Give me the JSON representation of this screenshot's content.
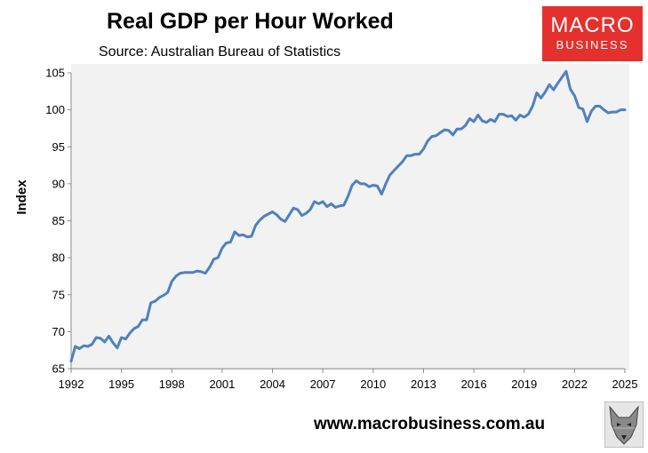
{
  "header": {
    "title": "Real GDP per Hour Worked",
    "subtitle": "Source: Australian Bureau of Statistics"
  },
  "logo": {
    "line1": "MACRO",
    "line2": "BUSINESS"
  },
  "footer": {
    "url": "www.macrobusiness.com.au"
  },
  "colors": {
    "line": "#4f81bd",
    "plot_bg": "#f2f2f2",
    "logo_bg": "#e4312d"
  },
  "chart_data": {
    "type": "line",
    "title": "Real GDP per Hour Worked",
    "subtitle": "Source: Australian Bureau of Statistics",
    "xlabel": "",
    "ylabel": "Index",
    "xlim": [
      1992,
      2025
    ],
    "ylim": [
      65,
      105
    ],
    "xticks": [
      "1992",
      "1995",
      "1998",
      "2001",
      "2004",
      "2007",
      "2010",
      "2013",
      "2016",
      "2019",
      "2022",
      "2025"
    ],
    "yticks": [
      "65",
      "70",
      "75",
      "80",
      "85",
      "90",
      "95",
      "100",
      "105"
    ],
    "grid": false,
    "legend": "none",
    "series": [
      {
        "x": [
          1992.0,
          1992.25,
          1992.5,
          1992.75,
          1993.0,
          1993.25,
          1993.5,
          1993.75,
          1994.0,
          1994.25,
          1994.5,
          1994.75,
          1995.0,
          1995.25,
          1995.5,
          1995.75,
          1996.0,
          1996.25,
          1996.5,
          1996.75,
          1997.0,
          1997.25,
          1997.5,
          1997.75,
          1998.0,
          1998.25,
          1998.5,
          1998.75,
          1999.0,
          1999.25,
          1999.5,
          1999.75,
          2000.0,
          2000.25,
          2000.5,
          2000.75,
          2001.0,
          2001.25,
          2001.5,
          2001.75,
          2002.0,
          2002.25,
          2002.5,
          2002.75,
          2003.0,
          2003.25,
          2003.5,
          2003.75,
          2004.0,
          2004.25,
          2004.5,
          2004.75,
          2005.0,
          2005.25,
          2005.5,
          2005.75,
          2006.0,
          2006.25,
          2006.5,
          2006.75,
          2007.0,
          2007.25,
          2007.5,
          2007.75,
          2008.0,
          2008.25,
          2008.5,
          2008.75,
          2009.0,
          2009.25,
          2009.5,
          2009.75,
          2010.0,
          2010.25,
          2010.5,
          2010.75,
          2011.0,
          2011.25,
          2011.5,
          2011.75,
          2012.0,
          2012.25,
          2012.5,
          2012.75,
          2013.0,
          2013.25,
          2013.5,
          2013.75,
          2014.0,
          2014.25,
          2014.5,
          2014.75,
          2015.0,
          2015.25,
          2015.5,
          2015.75,
          2016.0,
          2016.25,
          2016.5,
          2016.75,
          2017.0,
          2017.25,
          2017.5,
          2017.75,
          2018.0,
          2018.25,
          2018.5,
          2018.75,
          2019.0,
          2019.25,
          2019.5,
          2019.75,
          2020.0,
          2020.25,
          2020.5,
          2020.75,
          2021.0,
          2021.25,
          2021.5,
          2021.75,
          2022.0,
          2022.25,
          2022.5,
          2022.75,
          2023.0,
          2023.25,
          2023.5,
          2023.75,
          2024.0,
          2024.25,
          2024.5,
          2024.75,
          2025.0
        ],
        "y": [
          66.0,
          68.0,
          67.7,
          68.1,
          68.0,
          68.3,
          69.2,
          69.1,
          68.6,
          69.4,
          68.5,
          67.8,
          69.2,
          69.0,
          69.8,
          70.4,
          70.7,
          71.6,
          71.6,
          73.9,
          74.1,
          74.6,
          74.9,
          75.3,
          76.8,
          77.5,
          77.9,
          78.0,
          78.0,
          78.0,
          78.2,
          78.1,
          77.9,
          78.7,
          79.8,
          80.0,
          81.3,
          82.0,
          82.1,
          83.5,
          83.0,
          83.1,
          82.8,
          82.9,
          84.4,
          85.1,
          85.6,
          85.9,
          86.2,
          85.8,
          85.2,
          84.9,
          85.8,
          86.7,
          86.5,
          85.7,
          86.0,
          86.5,
          87.6,
          87.3,
          87.6,
          86.9,
          87.3,
          86.8,
          87.0,
          87.1,
          88.3,
          89.8,
          90.4,
          90.0,
          90.0,
          89.6,
          89.8,
          89.7,
          88.6,
          90.0,
          91.2,
          91.8,
          92.4,
          93.0,
          93.8,
          93.8,
          94.0,
          94.0,
          94.7,
          95.8,
          96.4,
          96.5,
          96.9,
          97.3,
          97.2,
          96.6,
          97.4,
          97.4,
          97.9,
          98.8,
          98.4,
          99.3,
          98.5,
          98.3,
          98.7,
          98.4,
          99.4,
          99.4,
          99.1,
          99.2,
          98.6,
          99.3,
          99.0,
          99.4,
          100.5,
          102.3,
          101.6,
          102.4,
          103.4,
          102.7,
          103.6,
          104.4,
          105.2,
          102.8,
          101.9,
          100.3,
          100.1,
          98.4,
          99.8,
          100.5,
          100.5,
          100.0,
          99.6,
          99.7,
          99.7,
          100.0,
          100.0
        ]
      }
    ]
  }
}
